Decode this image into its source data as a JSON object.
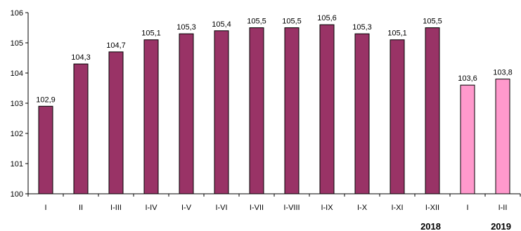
{
  "chart_data": {
    "type": "bar",
    "categories": [
      "I",
      "II",
      "I-III",
      "I-IV",
      "I-V",
      "I-VI",
      "I-VII",
      "I-VIII",
      "I-IX",
      "I-X",
      "I-XI",
      "I-XII",
      "I",
      "I-II"
    ],
    "values": [
      102.9,
      104.3,
      104.7,
      105.1,
      105.3,
      105.4,
      105.5,
      105.5,
      105.6,
      105.3,
      105.1,
      105.5,
      103.6,
      103.8
    ],
    "data_labels": [
      "102,9",
      "104,3",
      "104,7",
      "105,1",
      "105,3",
      "105,4",
      "105,5",
      "105,5",
      "105,6",
      "105,3",
      "105,1",
      "105,5",
      "103,6",
      "103,8"
    ],
    "groups": [
      {
        "label": "2018",
        "start": 0,
        "end": 11,
        "color": "#993366"
      },
      {
        "label": "2019",
        "start": 12,
        "end": 13,
        "color": "#ff99cc"
      }
    ],
    "ylim": [
      100,
      106
    ],
    "yticks": [
      100,
      101,
      102,
      103,
      104,
      105,
      106
    ],
    "ytick_labels": [
      "100",
      "101",
      "102",
      "103",
      "104",
      "105",
      "106"
    ],
    "title": "",
    "xlabel": "",
    "ylabel": "",
    "grid": false,
    "legend": "none"
  }
}
